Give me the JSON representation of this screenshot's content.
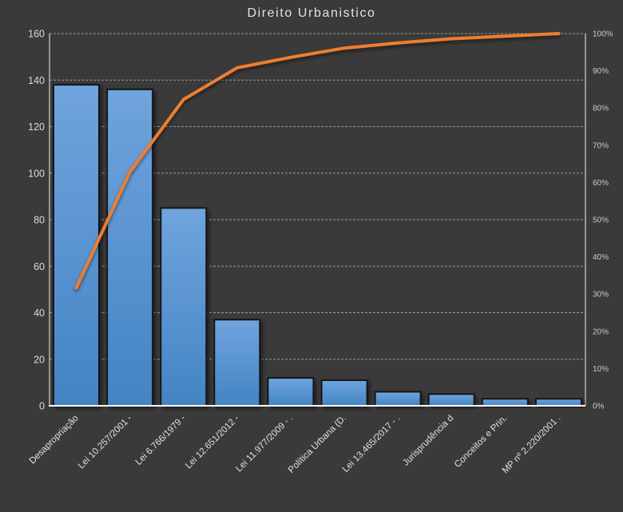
{
  "title": "Direito Urbanistico",
  "colors": {
    "background": "#3A3A3A",
    "title_text": "#E2E2E2",
    "left_axis_text": "#DCDCDC",
    "right_axis_text": "#C9C9C9",
    "category_text": "#E0E0E0",
    "gridline": "#ADADAD",
    "side_axis_line": "#C9C9C9",
    "baseline": "#FFFFFF",
    "bar_fill_top": "#70A4DD",
    "bar_fill_bottom": "#4384C4",
    "bar_border": "#161616",
    "line": "#ED7D31"
  },
  "chart_data": {
    "type": "pareto (bar + cumulative line combo)",
    "title": "Direito Urbanistico",
    "categories": [
      "Desapropriação",
      "Lei 10.257/2001 -",
      "Lei 6.766/1979 -",
      "Lei 12.651/2012 -",
      "Lei 11.977/2009 - .",
      "Política Urbana (D.",
      "Lei 13.465/2017 - .",
      "Jurisprudência d",
      "Conceitos e Prin.",
      "MP nº 2.220/2001 ."
    ],
    "bar_values": [
      138,
      136,
      85,
      37,
      12,
      11,
      6,
      5,
      3,
      3
    ],
    "cumulative_line_percent": [
      31.7,
      62.8,
      82.3,
      90.8,
      93.6,
      96.1,
      97.5,
      98.6,
      99.3,
      100
    ],
    "left_axis": {
      "min": 0,
      "max": 160,
      "step": 20,
      "ticks": [
        "0",
        "20",
        "40",
        "60",
        "80",
        "100",
        "120",
        "140",
        "160"
      ]
    },
    "right_axis": {
      "min": 0,
      "max": 100,
      "step": 10,
      "ticks": [
        "0%",
        "10%",
        "20%",
        "30%",
        "40%",
        "50%",
        "60%",
        "70%",
        "80%",
        "90%",
        "100%"
      ]
    },
    "grid": "horizontal dashed lines at left-axis steps",
    "legend": "none",
    "x_label_rotation_deg": -45
  }
}
